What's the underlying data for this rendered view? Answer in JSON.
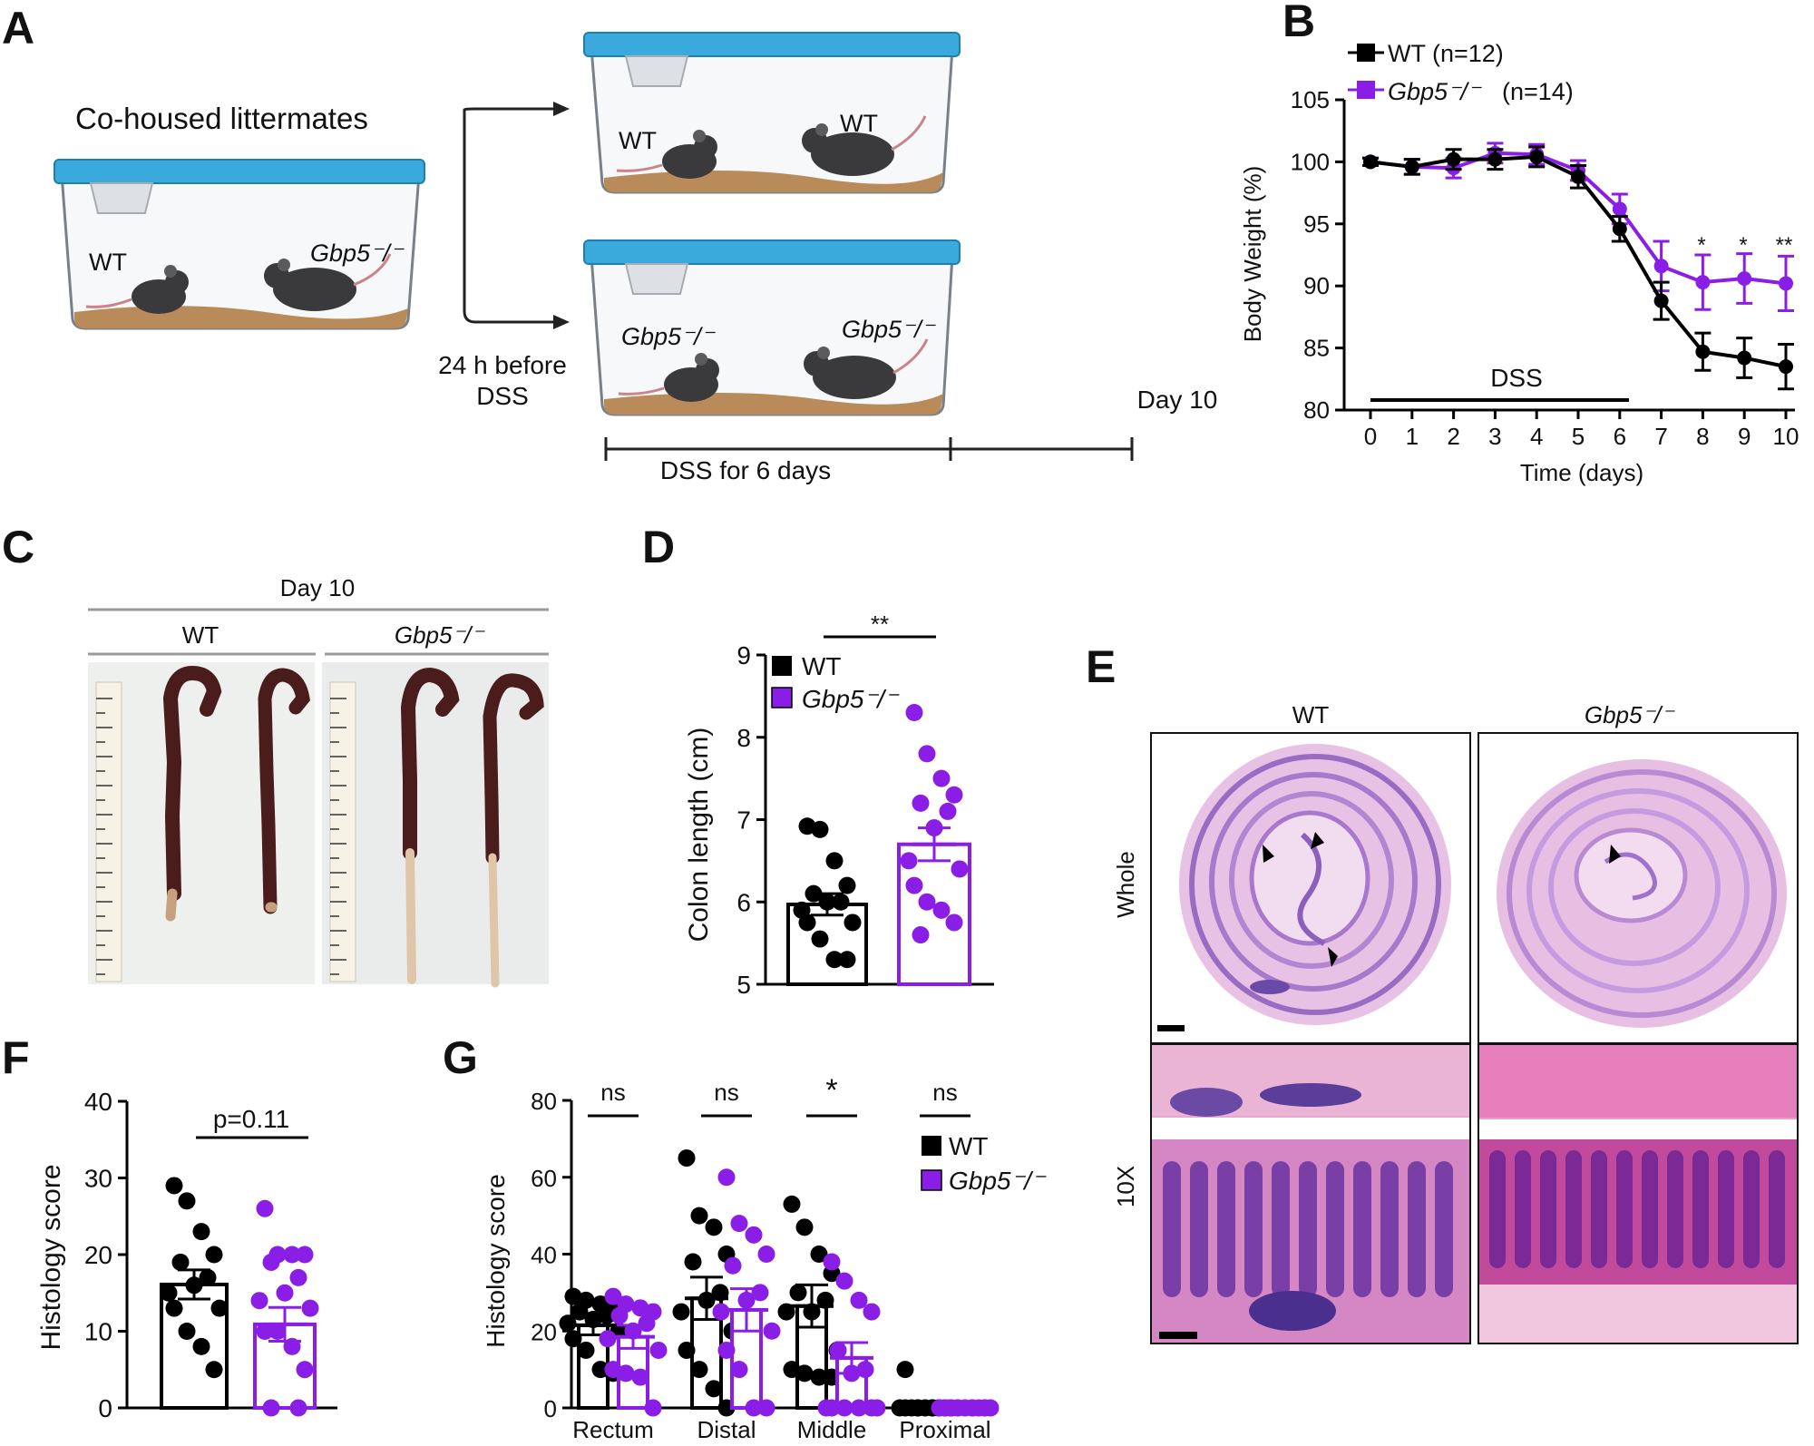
{
  "colors": {
    "wt": "#000000",
    "ko": "#8a1ee6",
    "lid": "#3aa9dc",
    "bedding": "#b98a5a",
    "mouse": "#3a3a3c"
  },
  "panel_labels": {
    "a": "A",
    "b": "B",
    "c": "C",
    "d": "D",
    "e": "E",
    "f": "F",
    "g": "G"
  },
  "panelA": {
    "cohoused": "Co-housed littermates",
    "wt": "WT",
    "ko": "Gbp5⁻/⁻",
    "before_1": "24 h before",
    "before_2": "DSS",
    "day10": "Day 10",
    "dss6": "DSS for 6 days"
  },
  "panelB": {
    "ylabel": "Body Weight (%)",
    "xlabel": "Time (days)",
    "dss_label": "DSS",
    "legend_wt": "WT (n=12)",
    "legend_ko_name": "Gbp5⁻/⁻",
    "legend_ko_n": "(n=14)",
    "stars": [
      "*",
      "*",
      "**"
    ]
  },
  "panelC": {
    "day10": "Day 10",
    "wt": "WT",
    "ko": "Gbp5⁻/⁻"
  },
  "panelD": {
    "sig": "**",
    "legend_wt": "WT",
    "legend_ko": "Gbp5⁻/⁻"
  },
  "panelE": {
    "wt": "WT",
    "ko": "Gbp5⁻/⁻",
    "row1": "Whole",
    "row2": "10X"
  },
  "panelF": {
    "sig": "p=0.11"
  },
  "panelG": {
    "sig": [
      "ns",
      "ns",
      "*",
      "ns"
    ],
    "legend_wt": "WT",
    "legend_ko": "Gbp5⁻/⁻"
  },
  "chart_data": [
    {
      "type": "line",
      "panel": "B",
      "x": [
        0,
        1,
        2,
        3,
        4,
        5,
        6,
        7,
        8,
        9,
        10
      ],
      "xticks": [
        "0",
        "1",
        "2",
        "3",
        "4",
        "5",
        "6",
        "7",
        "8",
        "9",
        "10"
      ],
      "xlabel": "Time (days)",
      "ylabel": "Body Weight (%)",
      "ylim": [
        80,
        105
      ],
      "yticks": [
        80,
        85,
        90,
        95,
        100,
        105
      ],
      "series": [
        {
          "name": "WT (n=12)",
          "values": [
            100,
            99.6,
            100.2,
            100.2,
            100.4,
            98.8,
            94.6,
            88.8,
            84.7,
            84.2,
            83.5
          ],
          "err": [
            0.3,
            0.6,
            0.8,
            0.8,
            0.8,
            0.9,
            1.0,
            1.5,
            1.5,
            1.6,
            1.8
          ]
        },
        {
          "name": "Gbp5⁻/⁻ (n=14)",
          "values": [
            100,
            99.6,
            99.5,
            100.7,
            100.6,
            99.3,
            96.2,
            91.6,
            90.3,
            90.6,
            90.2
          ],
          "err": [
            0.3,
            0.6,
            0.8,
            0.8,
            0.8,
            0.8,
            1.2,
            2.0,
            2.2,
            2.0,
            2.2
          ]
        }
      ]
    },
    {
      "type": "bar",
      "panel": "D",
      "categories": [
        "WT",
        "Gbp5⁻/⁻"
      ],
      "ylabel": "Colon length (cm)",
      "ylim": [
        5,
        9
      ],
      "yticks": [
        5,
        6,
        7,
        8,
        9
      ],
      "values": [
        5.97,
        6.7
      ],
      "sem": [
        0.13,
        0.2
      ],
      "points": [
        [
          6.92,
          6.88,
          6.5,
          6.2,
          6.1,
          6.0,
          6.0,
          5.9,
          5.75,
          5.75,
          5.55,
          5.3,
          5.3
        ],
        [
          8.3,
          7.8,
          7.5,
          7.3,
          7.2,
          7.1,
          6.9,
          6.5,
          6.4,
          6.2,
          6.0,
          5.9,
          5.75,
          5.6
        ]
      ]
    },
    {
      "type": "bar",
      "panel": "F",
      "categories": [
        "WT",
        "Gbp5⁻/⁻"
      ],
      "ylabel": "Histology score",
      "ylim": [
        0,
        40
      ],
      "yticks": [
        0,
        10,
        20,
        30,
        40
      ],
      "values": [
        16.1,
        10.9
      ],
      "sem": [
        1.9,
        2.2
      ],
      "points": [
        [
          29,
          27,
          23,
          20,
          19,
          17,
          16,
          15,
          13,
          13,
          10,
          8,
          5
        ],
        [
          26,
          20,
          20,
          20,
          19,
          17,
          15,
          14,
          13,
          10,
          10,
          8,
          5,
          0,
          0
        ]
      ]
    },
    {
      "type": "bar",
      "panel": "G",
      "categories": [
        "Rectum",
        "Distal",
        "Middle",
        "Proximal"
      ],
      "ylabel": "Histology score",
      "ylim": [
        0,
        80
      ],
      "yticks": [
        0,
        20,
        40,
        60,
        80
      ],
      "series": [
        {
          "name": "WT",
          "values": [
            21.5,
            28.5,
            26.5,
            0
          ],
          "sem": [
            2.5,
            5.5,
            5.5,
            0
          ]
        },
        {
          "name": "Gbp5⁻/⁻",
          "values": [
            18.5,
            25.5,
            13,
            0
          ],
          "sem": [
            3.0,
            5.5,
            4.0,
            0
          ]
        }
      ],
      "points": [
        [
          [
            29,
            28,
            27,
            26,
            25,
            24,
            23,
            22,
            20,
            18,
            15,
            10,
            9
          ],
          [
            29,
            27,
            26,
            25,
            24,
            22,
            20,
            18,
            15,
            10,
            9,
            8,
            0
          ]
        ],
        [
          [
            65,
            50,
            47,
            40,
            38,
            30,
            28,
            25,
            20,
            15,
            10,
            5,
            0
          ],
          [
            60,
            48,
            45,
            40,
            37,
            30,
            28,
            25,
            20,
            15,
            10,
            0,
            0
          ]
        ],
        [
          [
            53,
            47,
            40,
            35,
            30,
            28,
            25,
            25,
            15,
            10,
            9,
            8,
            8
          ],
          [
            38,
            33,
            28,
            25,
            15,
            10,
            9,
            0,
            0,
            0,
            0,
            0,
            0
          ]
        ],
        [
          [
            10,
            0,
            0,
            0,
            0,
            0,
            0,
            0,
            0,
            0,
            0,
            0,
            0
          ],
          [
            0,
            0,
            0,
            0,
            0,
            0,
            0,
            0,
            0,
            0,
            0,
            0,
            0
          ]
        ]
      ]
    }
  ]
}
